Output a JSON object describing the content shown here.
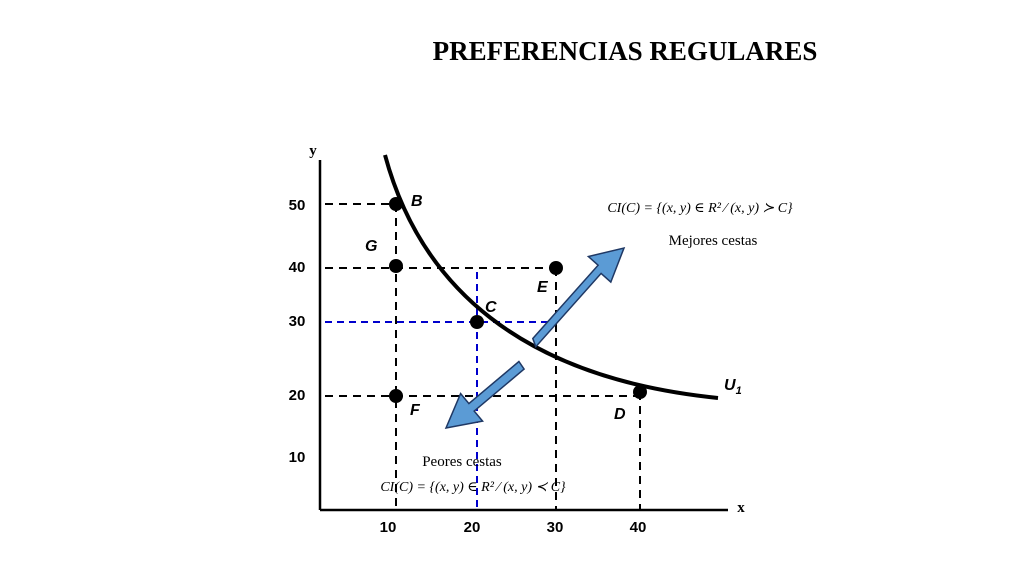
{
  "title": "PREFERENCIAS REGULARES",
  "axes": {
    "x_name": "x",
    "y_name": "y",
    "x_ticks": [
      "10",
      "20",
      "30",
      "40"
    ],
    "y_ticks": [
      "10",
      "20",
      "30",
      "40",
      "50"
    ]
  },
  "curve": {
    "label_main": "U",
    "label_sub": "1"
  },
  "points": [
    {
      "name": "B",
      "x": 10,
      "y": 50
    },
    {
      "name": "G",
      "x": 10,
      "y": 40
    },
    {
      "name": "E",
      "x": 30,
      "y": 40
    },
    {
      "name": "C",
      "x": 20,
      "y": 30
    },
    {
      "name": "F",
      "x": 10,
      "y": 20
    },
    {
      "name": "D",
      "x": 40,
      "y": 20
    }
  ],
  "better": {
    "label": "Mejores cestas",
    "formula": "CI(C) = {(x, y) ∈ R² ⁄ (x, y) ≻ C}"
  },
  "worse": {
    "label": "Peores cestas",
    "formula": "CI(C) = {(x, y) ∈ R² ⁄ (x, y) ≺ C}"
  },
  "colors": {
    "arrow_fill": "#5b9bd5",
    "arrow_stroke": "#1f3864",
    "guide_blue": "#0000cc",
    "ink": "#000000"
  }
}
